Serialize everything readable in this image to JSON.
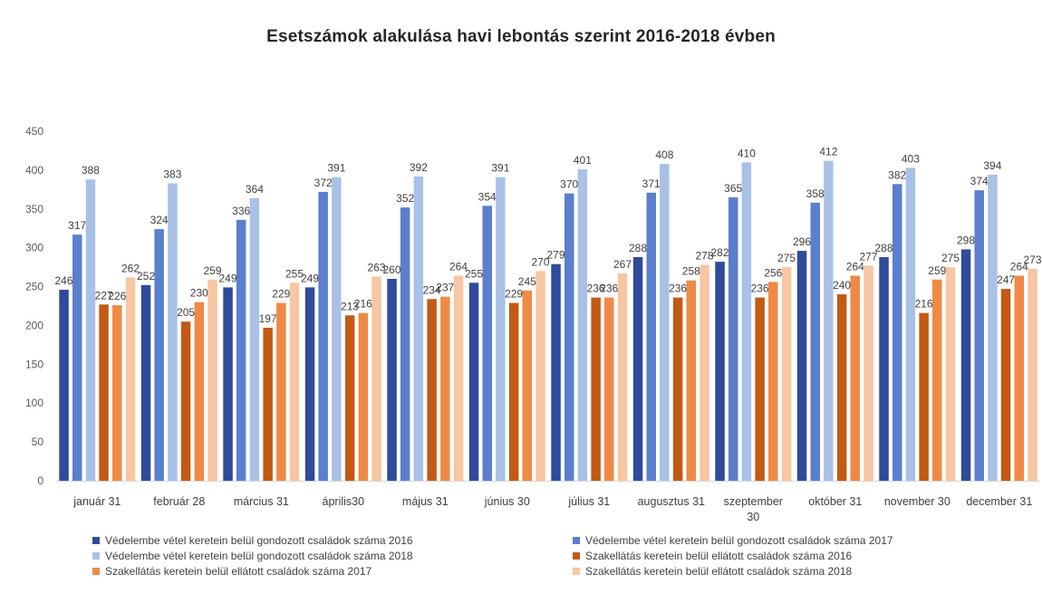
{
  "chart_data": {
    "type": "bar",
    "title": "Esetszámok alakulása havi lebontás szerint 2016-2018 évben",
    "categories": [
      "január 31",
      "február 28",
      "március 31",
      "április30",
      "május 31",
      "június 30",
      "július 31",
      "augusztus 31",
      "szeptember 30",
      "október 31",
      "november 30",
      "december 31"
    ],
    "ylim": [
      0,
      450
    ],
    "yticks": [
      0,
      50,
      100,
      150,
      200,
      250,
      300,
      350,
      400,
      450
    ],
    "legend_position": "bottom",
    "grid": false,
    "series": [
      {
        "name": "Védelembe vétel keretein belül gondozott családok száma 2016",
        "color": "#2F4B9B",
        "values": [
          246,
          252,
          249,
          249,
          260,
          255,
          279,
          288,
          282,
          296,
          288,
          298
        ]
      },
      {
        "name": "Védelembe vétel keretein belül gondozott családok száma 2017",
        "color": "#5B7FCC",
        "values": [
          317,
          324,
          336,
          372,
          352,
          354,
          370,
          371,
          365,
          358,
          382,
          374
        ]
      },
      {
        "name": "Védelembe vétel keretein belül gondozott családok száma 2018",
        "color": "#A9C1E6",
        "values": [
          388,
          383,
          364,
          391,
          392,
          391,
          401,
          408,
          410,
          412,
          403,
          394
        ]
      },
      {
        "name": "Szakellátás keretein belül ellátott családok száma 2016",
        "color": "#C25A14",
        "values": [
          227,
          205,
          197,
          213,
          234,
          229,
          236,
          236,
          236,
          240,
          216,
          247
        ]
      },
      {
        "name": "Szakellátás keretein belül ellátott családok száma 2017",
        "color": "#EE8A45",
        "values": [
          226,
          230,
          229,
          216,
          237,
          245,
          236,
          258,
          256,
          264,
          259,
          264
        ]
      },
      {
        "name": "Szakellátás keretein belül ellátott családok száma 2018",
        "color": "#F7C6A2",
        "values": [
          262,
          259,
          255,
          263,
          264,
          270,
          267,
          278,
          275,
          277,
          275,
          273
        ]
      }
    ]
  }
}
